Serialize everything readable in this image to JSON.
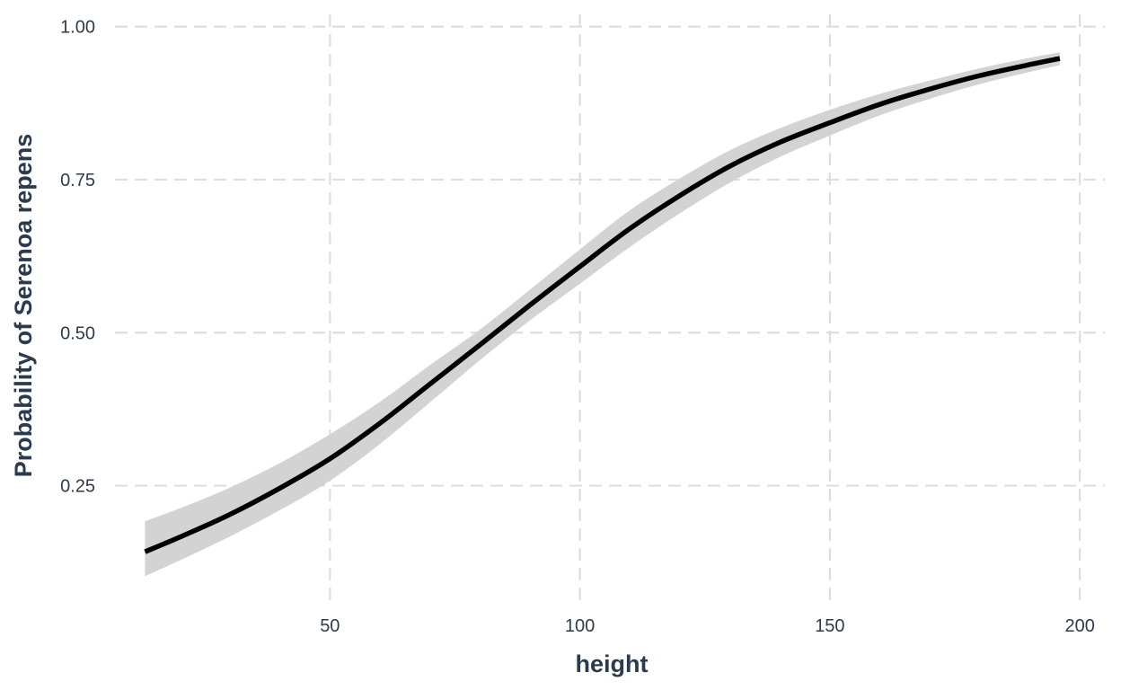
{
  "chart_data": {
    "type": "line",
    "xlabel": "height",
    "ylabel": "Probability of Serenoa repens",
    "xlim": [
      7,
      205
    ],
    "ylim": [
      0.06,
      1.02
    ],
    "x_ticks": [
      50,
      100,
      150,
      200
    ],
    "y_ticks": [
      0.25,
      0.5,
      0.75,
      1.0
    ],
    "x_tick_labels": [
      "50",
      "100",
      "150",
      "200"
    ],
    "y_tick_labels": [
      "0.25",
      "0.50",
      "0.75",
      "1.00"
    ],
    "grid": true,
    "legend": "none",
    "colors": {
      "line": "#000000",
      "ribbon": "#d3d3d3",
      "grid": "#dedede",
      "text": "#2b3a4c"
    },
    "series": [
      {
        "x": [
          13,
          20,
          30,
          40,
          50,
          60,
          70,
          80,
          90,
          100,
          110,
          120,
          130,
          140,
          150,
          160,
          170,
          180,
          190,
          196
        ],
        "y": [
          0.142,
          0.166,
          0.203,
          0.246,
          0.294,
          0.352,
          0.416,
          0.48,
          0.545,
          0.608,
          0.67,
          0.724,
          0.772,
          0.811,
          0.843,
          0.873,
          0.898,
          0.92,
          0.938,
          0.948
        ],
        "lower": [
          0.102,
          0.128,
          0.167,
          0.21,
          0.258,
          0.318,
          0.386,
          0.455,
          0.52,
          0.58,
          0.64,
          0.695,
          0.745,
          0.787,
          0.822,
          0.855,
          0.882,
          0.906,
          0.926,
          0.937
        ],
        "upper": [
          0.192,
          0.213,
          0.247,
          0.287,
          0.334,
          0.387,
          0.447,
          0.505,
          0.57,
          0.636,
          0.7,
          0.752,
          0.798,
          0.834,
          0.864,
          0.89,
          0.912,
          0.932,
          0.949,
          0.958
        ]
      }
    ]
  }
}
